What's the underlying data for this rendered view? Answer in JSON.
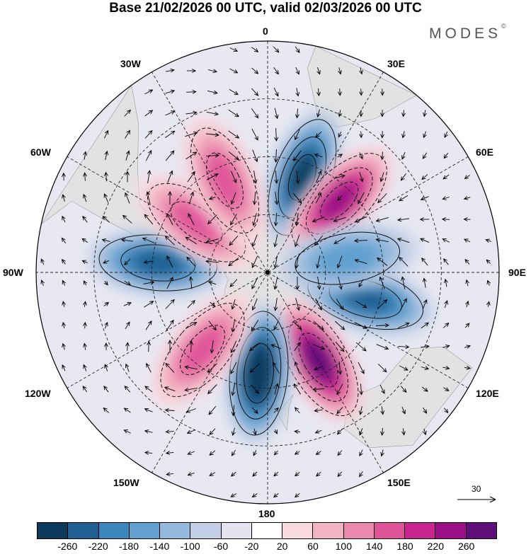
{
  "title": "Base 21/02/2026 00 UTC, valid 02/03/2026 00 UTC",
  "brand": "MODES",
  "brand_mark": "©",
  "lon_labels": [
    "0",
    "30E",
    "60E",
    "90E",
    "120E",
    "150E",
    "180",
    "150W",
    "120W",
    "90W",
    "60W",
    "30W"
  ],
  "colorbar": {
    "colors": [
      "#0d3a5c",
      "#1f5f91",
      "#3a86bd",
      "#61a0cf",
      "#94b9dc",
      "#c3cfe6",
      "#e4e4f1",
      "#ffffff",
      "#f8dadf",
      "#f2b3c3",
      "#eb88ad",
      "#e0559a",
      "#c8258e",
      "#9b0e86",
      "#5f0e7a"
    ],
    "ticks": [
      "-260",
      "-220",
      "-180",
      "-140",
      "-100",
      "-60",
      "-20",
      "20",
      "60",
      "100",
      "140",
      "180",
      "220",
      "260"
    ]
  },
  "reference_vector": "30",
  "anomalies": [
    {
      "name": "neg-0E",
      "lat_center": 55,
      "lon": 20,
      "sign": -1,
      "magnitude": 240
    },
    {
      "name": "pos-40E",
      "lat_center": 55,
      "lon": 45,
      "sign": 1,
      "magnitude": 230
    },
    {
      "name": "neg-100E",
      "lat_center": 55,
      "lon": 105,
      "sign": -1,
      "magnitude": 200
    },
    {
      "name": "neg-80E",
      "lat_center": 62,
      "lon": 80,
      "sign": -1,
      "magnitude": 110
    },
    {
      "name": "pos-145E",
      "lat_center": 55,
      "lon": 150,
      "sign": 1,
      "magnitude": 260
    },
    {
      "name": "neg-175",
      "lat_center": 55,
      "lon": -175,
      "sign": -1,
      "magnitude": 270
    },
    {
      "name": "pos-140W",
      "lat_center": 55,
      "lon": -140,
      "sign": 1,
      "magnitude": 170
    },
    {
      "name": "neg-90W",
      "lat_center": 52,
      "lon": -85,
      "sign": -1,
      "magnitude": 190
    },
    {
      "name": "pos-60W",
      "lat_center": 60,
      "lon": -55,
      "sign": 1,
      "magnitude": 150
    },
    {
      "name": "pos-35W",
      "lat_center": 55,
      "lon": -25,
      "sign": 1,
      "magnitude": 140
    }
  ]
}
